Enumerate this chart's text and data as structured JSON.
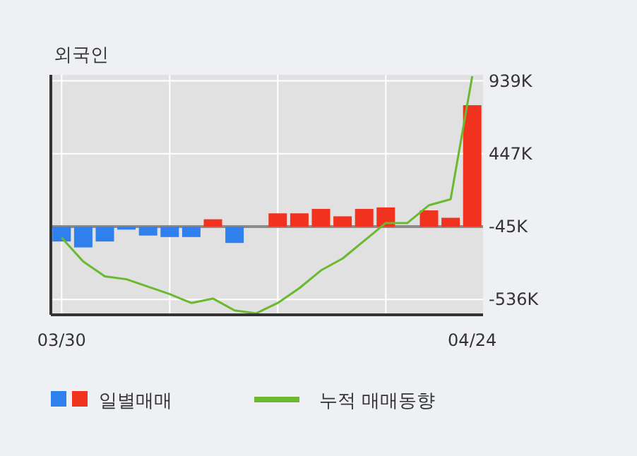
{
  "chart_data": {
    "type": "bar",
    "title": "외국인",
    "categories": [
      "03/30",
      null,
      null,
      null,
      null,
      null,
      null,
      null,
      null,
      null,
      null,
      null,
      null,
      null,
      null,
      null,
      null,
      null,
      null,
      "04/24"
    ],
    "series": [
      {
        "name": "일별매매",
        "base": [
          -45,
          -45,
          -45,
          -45,
          -45,
          -45,
          -45,
          -45,
          -45,
          null,
          -45,
          -45,
          -45,
          -45,
          -45,
          -45,
          null,
          -45,
          -45,
          -45
        ],
        "values": [
          -100,
          -140,
          -100,
          -20,
          -60,
          -70,
          -70,
          50,
          -110,
          null,
          90,
          90,
          120,
          70,
          120,
          130,
          null,
          110,
          60,
          820
        ],
        "colors": [
          "#2f80ed",
          "#2f80ed",
          "#2f80ed",
          "#2f80ed",
          "#2f80ed",
          "#2f80ed",
          "#2f80ed",
          "#f0321e",
          "#2f80ed",
          "#f0321e",
          "#f0321e",
          "#f0321e",
          "#f0321e",
          "#f0321e",
          "#f0321e",
          "#f0321e",
          "#f0321e",
          "#f0321e",
          "#f0321e",
          "#f0321e"
        ]
      },
      {
        "name": "누적 매매동향",
        "type": "line",
        "color": "#6ab92e",
        "values": [
          -120,
          -280,
          -380,
          -400,
          -450,
          -500,
          -560,
          -530,
          -610,
          -630,
          -560,
          -460,
          -340,
          -260,
          -140,
          -20,
          -20,
          100,
          140,
          970
        ]
      }
    ],
    "ylim": [
      -640,
      980
    ],
    "yticks": [
      {
        "value": 939,
        "label": "939K"
      },
      {
        "value": 447,
        "label": "447K"
      },
      {
        "value": -45,
        "label": "-45K"
      },
      {
        "value": -536,
        "label": "-536K"
      }
    ],
    "ref_lines": [
      {
        "axis": "y",
        "value": -45,
        "color": "#8a8a8a"
      }
    ],
    "grid": true,
    "legend": "bottom"
  }
}
